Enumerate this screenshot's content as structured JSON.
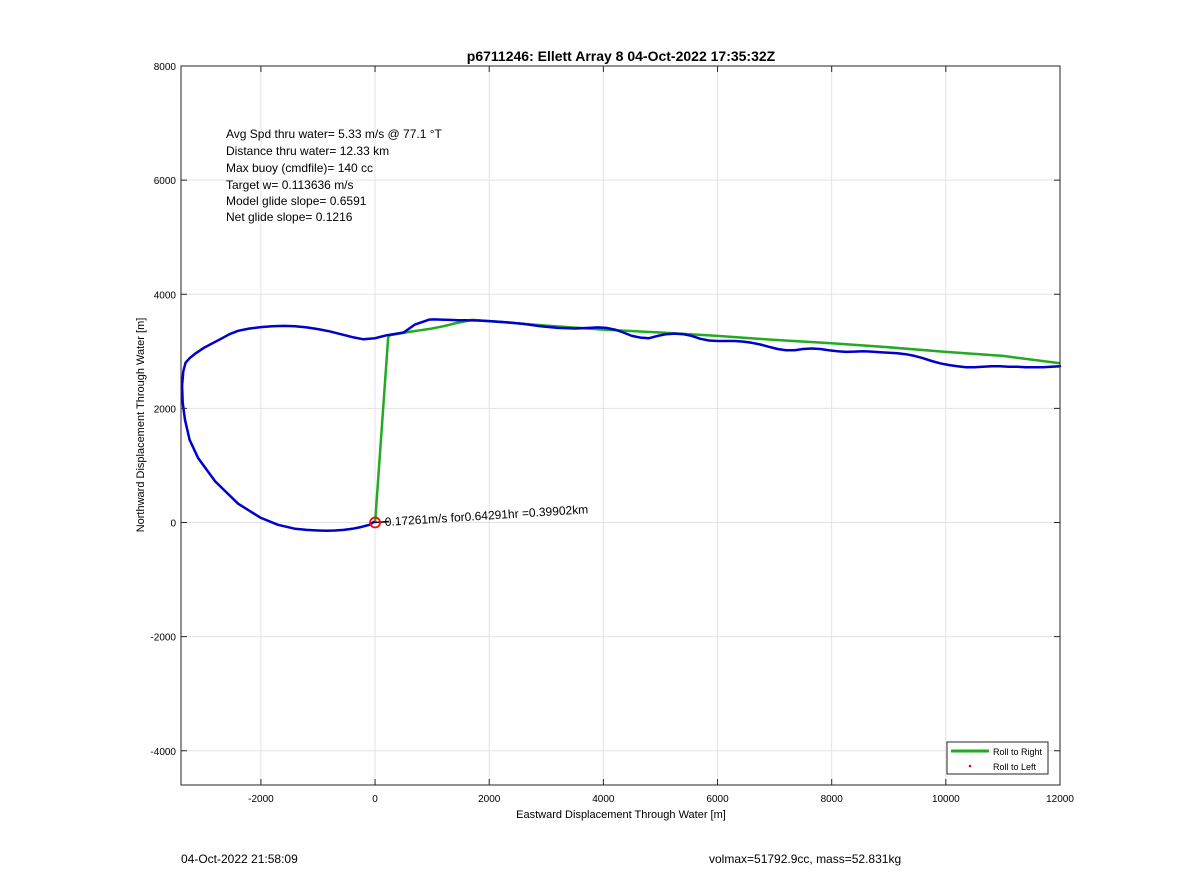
{
  "chart_data": {
    "type": "line",
    "title": "p6711246: Ellett Array 8 04-Oct-2022 17:35:32Z",
    "xlabel": "Eastward Displacement Through Water [m]",
    "ylabel": "Northward Displacement Through Water [m]",
    "xlim": [
      -3400,
      12000
    ],
    "ylim": [
      -4600,
      8000
    ],
    "xticks": [
      -2000,
      0,
      2000,
      4000,
      6000,
      8000,
      10000,
      12000
    ],
    "yticks": [
      -4000,
      -2000,
      0,
      2000,
      4000,
      6000,
      8000
    ],
    "grid": true,
    "legend_position": "bottom-right",
    "annotations": [
      "Avg Spd thru water=  5.33 m/s @  77.1 °T",
      "Distance thru water= 12.33 km",
      "Max buoy (cmdfile)= 140 cc",
      "Target w= 0.113636 m/s",
      "Model glide slope= 0.6591",
      "Net glide slope= 0.1216"
    ],
    "current_label": "0.17261m/s for0.64291hr =0.39902km",
    "series": [
      {
        "name": "Roll to Right",
        "color": "#22aa22",
        "x": [
          0,
          230,
          260,
          420,
          600,
          800,
          1000,
          1200,
          1400,
          1700,
          2000,
          3000,
          4000,
          5000,
          6000,
          7000,
          8000,
          9000,
          10000,
          11000,
          12000
        ],
        "y": [
          0,
          3250,
          3280,
          3310,
          3340,
          3370,
          3400,
          3440,
          3490,
          3550,
          3530,
          3450,
          3380,
          3330,
          3270,
          3200,
          3140,
          3070,
          2990,
          2920,
          2790
        ]
      },
      {
        "name": "Roll to Left",
        "color": "#ff0000",
        "x": [],
        "y": []
      },
      {
        "name": "",
        "color": "#0000cc",
        "x": [
          -20,
          -100,
          -250,
          -400,
          -550,
          -700,
          -850,
          -1000,
          -1200,
          -1400,
          -1700,
          -2000,
          -2400,
          -2800,
          -3100,
          -3250,
          -3330,
          -3370,
          -3380,
          -3360,
          -3320,
          -3250,
          -3150,
          -3000,
          -2850,
          -2700,
          -2550,
          -2400,
          -2200,
          -2000,
          -1800,
          -1600,
          -1400,
          -1200,
          -1000,
          -800,
          -600,
          -400,
          -200,
          0,
          200,
          500,
          600,
          700,
          850,
          950,
          1050,
          1150,
          1300,
          1450,
          1600,
          1800,
          2000,
          2300,
          2600,
          2900,
          3200,
          3500,
          3750,
          3900,
          4050,
          4200,
          4350,
          4500,
          4650,
          4800,
          4950,
          5100,
          5250,
          5400,
          5550,
          5700,
          5850,
          6000,
          6150,
          6300,
          6450,
          6600,
          6750,
          6900,
          7050,
          7200,
          7350,
          7500,
          7650,
          7800,
          7950,
          8100,
          8250,
          8400,
          8550,
          8700,
          8850,
          9000,
          9150,
          9300,
          9450,
          9600,
          9750,
          9900,
          10050,
          10200,
          10350,
          10500,
          10650,
          10800,
          10950,
          11100,
          11250,
          11400,
          11550,
          11700,
          11850,
          12000
        ],
        "y": [
          10,
          -40,
          -80,
          -110,
          -130,
          -140,
          -145,
          -140,
          -130,
          -110,
          -40,
          80,
          330,
          720,
          1130,
          1450,
          1800,
          2100,
          2400,
          2650,
          2800,
          2880,
          2960,
          3060,
          3140,
          3220,
          3300,
          3360,
          3400,
          3425,
          3440,
          3445,
          3440,
          3420,
          3390,
          3350,
          3300,
          3250,
          3210,
          3230,
          3280,
          3330,
          3400,
          3470,
          3520,
          3555,
          3560,
          3555,
          3550,
          3545,
          3545,
          3540,
          3530,
          3510,
          3480,
          3440,
          3410,
          3400,
          3410,
          3420,
          3410,
          3380,
          3330,
          3270,
          3240,
          3230,
          3270,
          3300,
          3310,
          3300,
          3270,
          3220,
          3190,
          3180,
          3180,
          3180,
          3170,
          3150,
          3120,
          3080,
          3040,
          3020,
          3020,
          3040,
          3050,
          3040,
          3020,
          3000,
          2990,
          2995,
          3000,
          2995,
          2985,
          2975,
          2965,
          2950,
          2920,
          2880,
          2830,
          2790,
          2760,
          2740,
          2720,
          2720,
          2730,
          2740,
          2740,
          2730,
          2730,
          2720,
          2720,
          2720,
          2730,
          2740
        ]
      }
    ]
  },
  "footer": {
    "timestamp": "04-Oct-2022 21:58:09",
    "summary": "volmax=51792.9cc, mass=52.831kg"
  }
}
